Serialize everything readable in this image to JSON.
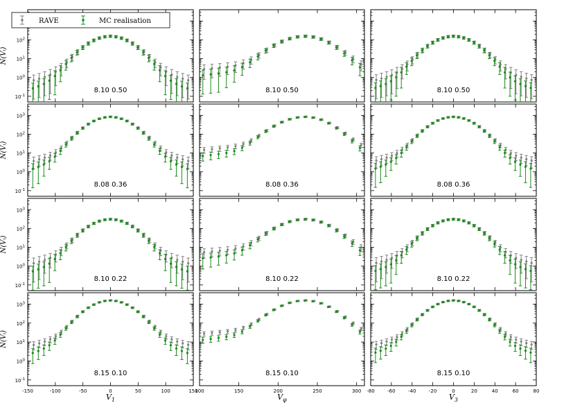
{
  "figure": {
    "rows": [
      "8.10 0.50",
      "8.08 0.36",
      "8.10 0.22",
      "8.15 0.10"
    ],
    "ylabel": "N(V_i)",
    "legend": [
      {
        "name": "RAVE",
        "color": "#808080"
      },
      {
        "name": "MC realisation",
        "color": "#1a8a1a"
      }
    ]
  },
  "chart_data": {
    "type": "scatter",
    "yscale": "log",
    "ylim": [
      0.05,
      4000
    ],
    "ytick_labels": [
      "10^-1",
      "10^0",
      "10^1",
      "10^2",
      "10^3"
    ],
    "grid": false,
    "legend_position": "top-left",
    "columns": [
      {
        "xlabel": "V_1",
        "xlim": [
          -150,
          150
        ],
        "xticks": [
          -150,
          -100,
          -50,
          0,
          50,
          100,
          150
        ],
        "peak_x": 0,
        "lo_x": -140,
        "hi_x": 140,
        "step": 10
      },
      {
        "xlabel": "V_φ",
        "xlim": [
          100,
          310
        ],
        "xticks": [
          100,
          150,
          200,
          250,
          300
        ],
        "peak_x": 235,
        "lo_x": 105,
        "hi_x": 305,
        "step": 10
      },
      {
        "xlabel": "V_3",
        "xlim": [
          -80,
          80
        ],
        "xticks": [
          -80,
          -60,
          -40,
          -20,
          0,
          20,
          40,
          60,
          80
        ],
        "peak_x": 0,
        "lo_x": -75,
        "hi_x": 75,
        "step": 5
      }
    ],
    "peaks": [
      150,
      800,
      300,
      1500
    ],
    "series": [
      {
        "name": "RAVE",
        "color": "#808080"
      },
      {
        "name": "MC realisation",
        "color": "#1a8a1a"
      }
    ]
  }
}
